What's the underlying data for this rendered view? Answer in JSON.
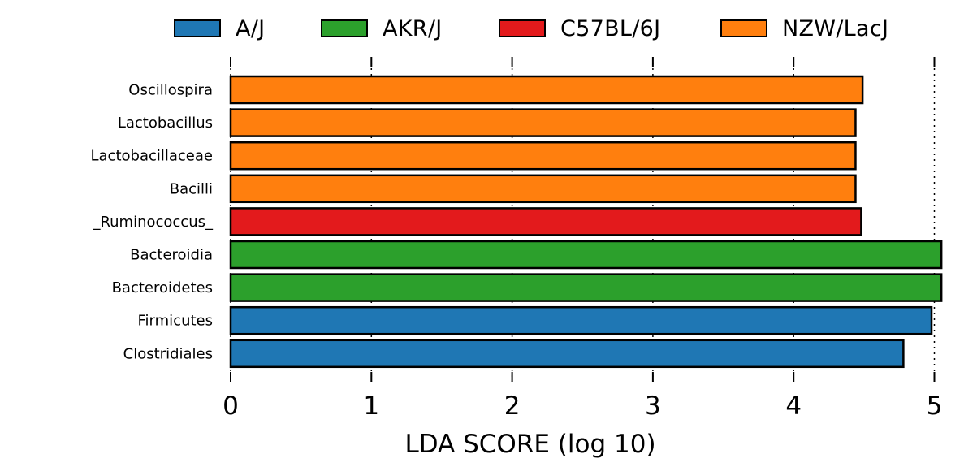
{
  "chart_data": {
    "type": "bar",
    "orientation": "horizontal",
    "title": "",
    "xlabel": "LDA SCORE (log 10)",
    "ylabel": "",
    "xlim": [
      0,
      5.05
    ],
    "xticks": [
      "0",
      "1",
      "2",
      "3",
      "4",
      "5"
    ],
    "grid": "vertical dotted",
    "legend_position": "top",
    "groups": [
      {
        "name": "A/J",
        "color": "#1f77b4"
      },
      {
        "name": "AKR/J",
        "color": "#2ca02c"
      },
      {
        "name": "C57BL/6J",
        "color": "#e31a1c"
      },
      {
        "name": "NZW/LacJ",
        "color": "#ff7f0e"
      }
    ],
    "bars": [
      {
        "label": "Oscillospira",
        "value": 4.49,
        "group": "NZW/LacJ"
      },
      {
        "label": "Lactobacillus",
        "value": 4.44,
        "group": "NZW/LacJ"
      },
      {
        "label": "Lactobacillaceae",
        "value": 4.44,
        "group": "NZW/LacJ"
      },
      {
        "label": "Bacilli",
        "value": 4.44,
        "group": "NZW/LacJ"
      },
      {
        "label": "_Ruminococcus_",
        "value": 4.48,
        "group": "C57BL/6J"
      },
      {
        "label": "Bacteroidia",
        "value": 5.05,
        "group": "AKR/J"
      },
      {
        "label": "Bacteroidetes",
        "value": 5.05,
        "group": "AKR/J"
      },
      {
        "label": "Firmicutes",
        "value": 4.98,
        "group": "A/J"
      },
      {
        "label": "Clostridiales",
        "value": 4.78,
        "group": "A/J"
      }
    ]
  }
}
